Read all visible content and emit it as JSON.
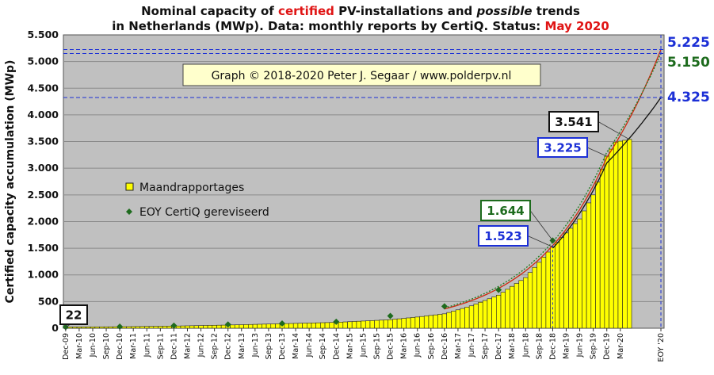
{
  "chart_data": {
    "type": "bar",
    "title": {
      "line1_a": "Nominal capacity of ",
      "line1_b": "certified",
      "line1_c": " PV-installations and ",
      "line1_d": "possible",
      "line1_e": " trends",
      "line2_a": "in Netherlands (MWp). Data: monthly reports by CertiQ. Status: ",
      "line2_b": "May 2020"
    },
    "ylabel": "Certified capacity accumulation (MWp)",
    "ylim": [
      0,
      5500
    ],
    "yticks": [
      0,
      500,
      1000,
      1500,
      2000,
      2500,
      3000,
      3500,
      4000,
      4500,
      5000,
      5500
    ],
    "ytick_labels": [
      "0",
      "500",
      "1.000",
      "1.500",
      "2.000",
      "2.500",
      "3.000",
      "3.500",
      "4.000",
      "4.500",
      "5.000",
      "5.500"
    ],
    "x_start": "2009-12",
    "x_end": "2020-12",
    "xtick_labels": [
      "Dec-09",
      "Mar-10",
      "Jun-10",
      "Sep-10",
      "Dec-10",
      "Mar-11",
      "Jun-11",
      "Sep-11",
      "Dec-11",
      "Mar-12",
      "Jun-12",
      "Sep-12",
      "Dec-12",
      "Mar-13",
      "Jun-13",
      "Sep-13",
      "Dec-13",
      "Mar-14",
      "Jun-14",
      "Sep-14",
      "Dec-14",
      "Mar-15",
      "Jun-15",
      "Sep-15",
      "Dec-15",
      "Mar-16",
      "Jun-16",
      "Sep-16",
      "Dec-16",
      "Mar-17",
      "Jun-17",
      "Sep-17",
      "Dec-17",
      "Mar-18",
      "Jun-18",
      "Sep-18",
      "Dec-18",
      "Mar-19",
      "Jun-19",
      "Sep-19",
      "Dec-19",
      "Mar-20",
      "EOY '20"
    ],
    "anchor_values": [
      {
        "month": "2009-12",
        "value": 22
      },
      {
        "month": "2010-12",
        "value": 28
      },
      {
        "month": "2011-12",
        "value": 40
      },
      {
        "month": "2012-12",
        "value": 60
      },
      {
        "month": "2013-12",
        "value": 85
      },
      {
        "month": "2014-12",
        "value": 110
      },
      {
        "month": "2015-12",
        "value": 160
      },
      {
        "month": "2016-06",
        "value": 210
      },
      {
        "month": "2016-12",
        "value": 270
      },
      {
        "month": "2017-06",
        "value": 420
      },
      {
        "month": "2017-12",
        "value": 620
      },
      {
        "month": "2018-06",
        "value": 950
      },
      {
        "month": "2018-12",
        "value": 1523
      },
      {
        "month": "2019-06",
        "value": 2050
      },
      {
        "month": "2019-09",
        "value": 2500
      },
      {
        "month": "2019-12",
        "value": 3225
      },
      {
        "month": "2020-02",
        "value": 3490
      },
      {
        "month": "2020-05",
        "value": 3541
      }
    ],
    "series": [
      {
        "name": "Maandrapportages",
        "color": "#ffff00",
        "kind": "bar"
      },
      {
        "name": "EOY CertiQ gereviseerd",
        "color": "#1e6b1e",
        "kind": "points",
        "points": [
          {
            "month": "2009-12",
            "value": 22
          },
          {
            "month": "2010-12",
            "value": 30
          },
          {
            "month": "2011-12",
            "value": 48
          },
          {
            "month": "2012-12",
            "value": 70
          },
          {
            "month": "2013-12",
            "value": 90
          },
          {
            "month": "2014-12",
            "value": 120
          },
          {
            "month": "2015-12",
            "value": 230
          },
          {
            "month": "2016-12",
            "value": 410
          },
          {
            "month": "2017-12",
            "value": 720
          },
          {
            "month": "2018-12",
            "value": 1644
          }
        ]
      }
    ],
    "trends": [
      {
        "name": "",
        "color": "#111111",
        "points": [
          {
            "month": "2018-12",
            "value": 1500
          },
          {
            "month": "2019-12",
            "value": 3100
          },
          {
            "month": "2020-12",
            "value": 4325
          }
        ]
      },
      {
        "name": "",
        "color": "#cc2a10",
        "points": [
          {
            "month": "2016-12",
            "value": 360
          },
          {
            "month": "2018-12",
            "value": 1550
          },
          {
            "month": "2019-12",
            "value": 3200
          },
          {
            "month": "2020-12",
            "value": 5225
          }
        ]
      },
      {
        "name": "",
        "color": "#1f7a1f",
        "points": [
          {
            "month": "2016-12",
            "value": 380
          },
          {
            "month": "2018-12",
            "value": 1620
          },
          {
            "month": "2019-12",
            "value": 3300
          },
          {
            "month": "2020-12",
            "value": 5150
          }
        ]
      }
    ],
    "hlines": [
      5225,
      5150,
      4325
    ],
    "annotations": [
      {
        "text": "22",
        "value": 22,
        "color": "#111111"
      },
      {
        "text": "3.541",
        "value": 3541,
        "color": "#111111"
      },
      {
        "text": "3.225",
        "value": 3225,
        "color": "#1b2fd6"
      },
      {
        "text": "1.644",
        "value": 1644,
        "color": "#1d6b1d"
      },
      {
        "text": "1.523",
        "value": 1523,
        "color": "#1b2fd6"
      }
    ],
    "right_labels": [
      {
        "text": "5.225",
        "value": 5225,
        "color": "#1b2fd6"
      },
      {
        "text": "5.150",
        "value": 5150,
        "color": "#1d6b1d"
      },
      {
        "text": "4.325",
        "value": 4325,
        "color": "#1b2fd6"
      }
    ],
    "copyright": "Graph © 2018-2020 Peter J. Segaar / www.polderpv.nl",
    "colors": {
      "plot_bg": "#c0c0c0",
      "bar": "#ffff00",
      "bar_edge": "#222222",
      "grid": "#8a8a8a",
      "hline": "#1b2fd6",
      "copy_box": "#ffffcc"
    }
  }
}
